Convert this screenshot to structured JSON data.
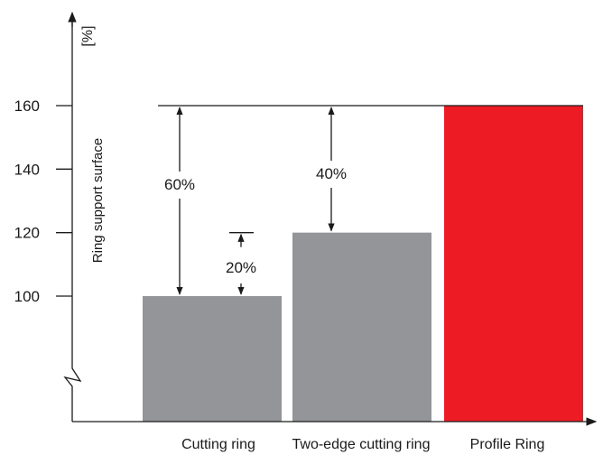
{
  "chart_data": {
    "type": "bar",
    "categories": [
      "Cutting ring",
      "Two-edge cutting ring",
      "Profile Ring"
    ],
    "values": [
      100,
      120,
      160
    ],
    "colors": [
      "#939598",
      "#939598",
      "#ed1c24"
    ],
    "ylabel": "Ring support surface",
    "yunit": "[%]",
    "yticks": [
      100,
      120,
      140,
      160
    ],
    "axis_break": true,
    "grid": false,
    "annotations": [
      {
        "text": "60%",
        "from": 100,
        "to": 160,
        "category": "Cutting ring"
      },
      {
        "text": "20%",
        "from": 100,
        "to": 120,
        "category": "Cutting ring"
      },
      {
        "text": "40%",
        "from": 120,
        "to": 160,
        "category": "Two-edge cutting ring"
      }
    ]
  }
}
